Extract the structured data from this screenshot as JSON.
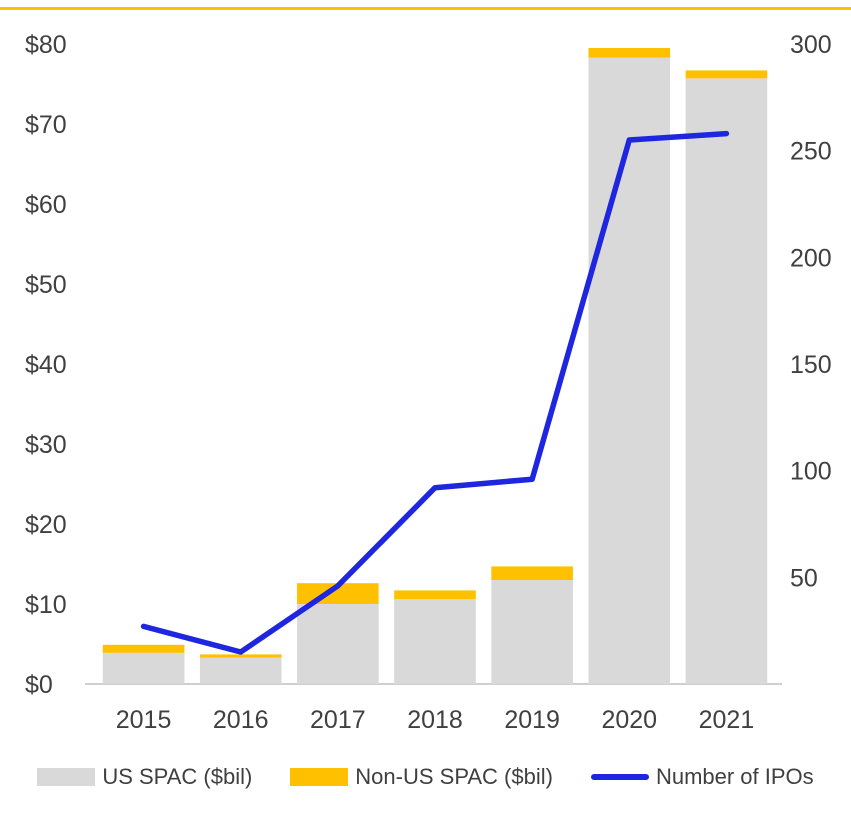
{
  "accent_color": "#FFC000",
  "text_color": "#404040",
  "axis_line_color": "#BFBFBF",
  "chart_data": {
    "type": "bar",
    "subtype": "stacked-bars-with-line",
    "categories": [
      "2015",
      "2016",
      "2017",
      "2018",
      "2019",
      "2020",
      "2021"
    ],
    "series": [
      {
        "name": "US SPAC ($bil)",
        "type": "bar",
        "axis": "left",
        "color": "#D9D9D9",
        "values": [
          3.9,
          3.3,
          10.0,
          10.6,
          13.0,
          78.3,
          75.7
        ]
      },
      {
        "name": "Non-US SPAC ($bil)",
        "type": "bar",
        "axis": "left",
        "color": "#FFC000",
        "values": [
          1.0,
          0.4,
          2.6,
          1.1,
          1.7,
          1.2,
          1.0
        ]
      },
      {
        "name": "Number of IPOs",
        "type": "line",
        "axis": "right",
        "color": "#1E26E0",
        "values": [
          27,
          15,
          46,
          92,
          96,
          255,
          258
        ]
      }
    ],
    "left_axis": {
      "min": 0,
      "max": 80,
      "step": 10,
      "tick_labels": [
        "$0",
        "$10",
        "$20",
        "$30",
        "$40",
        "$50",
        "$60",
        "$70",
        "$80"
      ]
    },
    "right_axis": {
      "min": 0,
      "max": 300,
      "step": 50,
      "tick_labels": [
        "50",
        "100",
        "150",
        "200",
        "250",
        "300"
      ]
    },
    "stacked": true,
    "grid": false,
    "legend_position": "bottom",
    "title": ""
  }
}
